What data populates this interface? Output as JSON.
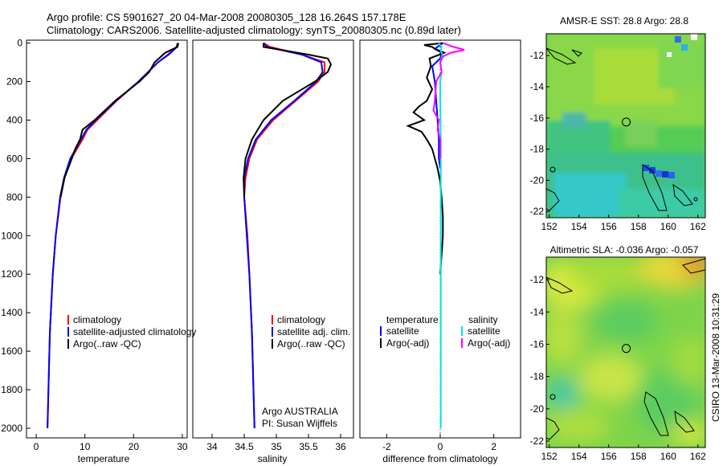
{
  "header": {
    "title_line1": "Argo profile: CS 5901627_20 04-Mar-2008 20080305_128 16.264S 157.178E",
    "title_line2": "Climatology: CARS2006. Satellite-adjusted climatology: synTS_20080305.nc (0.89d later)"
  },
  "side_stamp": "CSIRO 13-Mar-2008 10:31:29",
  "colors": {
    "climatology": "#ff0000",
    "satellite": "#0000ff",
    "argo": "#000000",
    "sal_satellite": "#00e5ee",
    "argo_adj": "#ff00ff"
  },
  "y_ticks": [
    "0",
    "200",
    "400",
    "600",
    "800",
    "1000",
    "1200",
    "1400",
    "1600",
    "1800",
    "2000"
  ],
  "chart_data": [
    {
      "type": "line",
      "xlabel": "temperature",
      "xlim": [
        -2,
        31
      ],
      "ylim": [
        2050,
        -15
      ],
      "y_reversed": true,
      "x_ticks": [
        "0",
        "10",
        "20",
        "30"
      ],
      "legend": [
        "climatology",
        "satellite-adjusted climatology",
        "Argo(..raw -QC)"
      ],
      "series": [
        {
          "name": "climatology",
          "color": "red",
          "depth": [
            0,
            20,
            60,
            100,
            150,
            200,
            300,
            400,
            450,
            500,
            600,
            700,
            800,
            1000,
            1200,
            1500,
            1800,
            2000
          ],
          "values": [
            29.0,
            28.8,
            27.0,
            25.0,
            23.0,
            21.0,
            16.5,
            12.5,
            10.5,
            9.5,
            7.2,
            5.8,
            5.0,
            4.0,
            3.4,
            2.8,
            2.5,
            2.3
          ]
        },
        {
          "name": "satellite-adjusted climatology",
          "color": "blue",
          "depth": [
            0,
            20,
            60,
            100,
            150,
            200,
            300,
            400,
            450,
            500,
            600,
            700,
            800,
            1000,
            1200,
            1500,
            1800,
            2000
          ],
          "values": [
            29.1,
            28.9,
            27.2,
            25.0,
            23.0,
            21.0,
            16.4,
            12.2,
            10.3,
            9.2,
            7.0,
            5.7,
            4.9,
            4.0,
            3.4,
            2.8,
            2.5,
            2.3
          ]
        },
        {
          "name": "Argo(..raw -QC)",
          "color": "black",
          "depth": [
            0,
            20,
            50,
            100,
            150,
            200,
            300,
            400,
            450,
            500,
            550,
            600,
            700,
            800
          ],
          "values": [
            29.2,
            29.0,
            26.5,
            24.3,
            23.2,
            21.2,
            16.2,
            12.0,
            9.5,
            9.0,
            8.0,
            7.3,
            5.8,
            5.0
          ]
        }
      ]
    },
    {
      "type": "line",
      "xlabel": "salinity",
      "xlim": [
        33.7,
        36.2
      ],
      "ylim": [
        2050,
        -15
      ],
      "y_reversed": true,
      "x_ticks": [
        "34",
        "34.5",
        "35",
        "35.5",
        "36"
      ],
      "legend": [
        "climatology",
        "satellite adj. clim.",
        "Argo(..raw -QC)"
      ],
      "annotation": [
        "Argo AUSTRALIA",
        "PI: Susan Wijffels"
      ],
      "series": [
        {
          "name": "climatology",
          "color": "red",
          "depth": [
            0,
            20,
            60,
            100,
            150,
            200,
            300,
            400,
            500,
            600,
            700,
            800,
            1000,
            1200,
            1500,
            2000
          ],
          "values": [
            34.8,
            34.9,
            35.4,
            35.75,
            35.75,
            35.65,
            35.3,
            34.95,
            34.7,
            34.58,
            34.52,
            34.5,
            34.55,
            34.58,
            34.62,
            34.66
          ]
        },
        {
          "name": "satellite adj. clim.",
          "color": "blue",
          "depth": [
            0,
            20,
            60,
            100,
            150,
            200,
            300,
            400,
            500,
            600,
            700,
            800,
            1000,
            1200,
            1500,
            2000
          ],
          "values": [
            34.8,
            34.85,
            35.4,
            35.7,
            35.72,
            35.62,
            35.28,
            34.92,
            34.68,
            34.56,
            34.5,
            34.5,
            34.54,
            34.58,
            34.62,
            34.66
          ]
        },
        {
          "name": "Argo(..raw -QC)",
          "color": "black",
          "depth": [
            0,
            20,
            60,
            80,
            110,
            150,
            200,
            300,
            400,
            500,
            600,
            700,
            800
          ],
          "values": [
            34.8,
            34.8,
            35.5,
            35.8,
            35.85,
            35.8,
            35.6,
            35.1,
            34.8,
            34.62,
            34.52,
            34.49,
            34.5
          ]
        }
      ]
    },
    {
      "type": "line",
      "xlabel": "difference from climatology",
      "xlim": [
        -3,
        3
      ],
      "ylim": [
        2050,
        -15
      ],
      "y_reversed": true,
      "x_ticks": [
        "-2",
        "0",
        "2"
      ],
      "legend_headers": [
        "temperature",
        "salinity"
      ],
      "legend": [
        "satellite",
        "Argo(-adj)",
        "satellite",
        "Argo(-adj)"
      ],
      "series": [
        {
          "name": "temperature satellite",
          "color": "blue",
          "depth": [
            0,
            10,
            30,
            50,
            80,
            120,
            200,
            300,
            400,
            500,
            600,
            650
          ],
          "values": [
            0.1,
            0.0,
            -0.2,
            0.05,
            0.0,
            -0.3,
            -0.2,
            -0.15,
            -0.1,
            -0.05,
            -0.05,
            0.0
          ]
        },
        {
          "name": "temperature Argo(-adj)",
          "color": "black",
          "depth": [
            0,
            10,
            20,
            30,
            50,
            80,
            120,
            180,
            240,
            300,
            330,
            360,
            400,
            430,
            460,
            500,
            550,
            600,
            650,
            720,
            800,
            900,
            1000,
            1100,
            1200
          ],
          "values": [
            0.1,
            -0.6,
            -0.3,
            -0.2,
            0.15,
            -0.4,
            -0.35,
            -0.5,
            -0.3,
            -0.5,
            -0.8,
            -1.0,
            -0.6,
            -1.2,
            -0.7,
            -0.5,
            -0.3,
            -0.2,
            -0.1,
            0.0,
            0.05,
            0.1,
            0.1,
            0.05,
            0.0
          ]
        },
        {
          "name": "salinity satellite",
          "color": "cyan",
          "depth": [
            0,
            20,
            40,
            60,
            100,
            150,
            200,
            300,
            500,
            800,
            1200,
            1600,
            2000
          ],
          "values": [
            -0.05,
            0.05,
            0.02,
            0.08,
            0.0,
            0.05,
            0.0,
            0.0,
            0.02,
            0.02,
            0.02,
            0.02,
            0.02
          ]
        },
        {
          "name": "salinity Argo(-adj)",
          "color": "magenta",
          "depth": [
            0,
            20,
            35,
            50,
            70,
            100,
            150,
            200,
            300,
            350,
            400,
            450,
            500,
            600
          ],
          "values": [
            0.1,
            0.5,
            0.9,
            0.4,
            0.1,
            0.0,
            0.05,
            -0.15,
            -0.2,
            -0.25,
            -0.05,
            -0.1,
            0.0,
            0.0
          ]
        }
      ]
    },
    {
      "type": "heatmap",
      "title": "AMSR-E SST: 28.8 Argo: 28.8",
      "xlim": [
        151.8,
        162.5
      ],
      "ylim": [
        -22.4,
        -10.6
      ],
      "x_ticks": [
        "152",
        "154",
        "156",
        "158",
        "160",
        "162"
      ],
      "y_ticks": [
        "-12",
        "-14",
        "-16",
        "-18",
        "-20",
        "-22"
      ],
      "argo_marker": {
        "lon": 157.18,
        "lat": -16.26
      }
    },
    {
      "type": "heatmap",
      "title": "Altimetric SLA: -0.036 Argo: -0.057",
      "xlim": [
        151.8,
        162.5
      ],
      "ylim": [
        -22.4,
        -10.6
      ],
      "x_ticks": [
        "152",
        "154",
        "156",
        "158",
        "160",
        "162"
      ],
      "y_ticks": [
        "-12",
        "-14",
        "-16",
        "-18",
        "-20",
        "-22"
      ],
      "argo_marker": {
        "lon": 157.18,
        "lat": -16.26
      }
    }
  ]
}
